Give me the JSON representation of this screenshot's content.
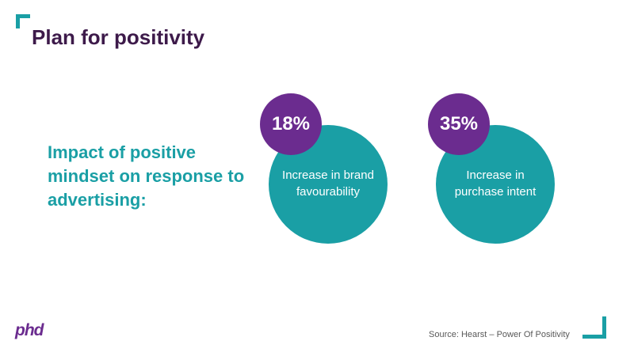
{
  "slide": {
    "title": "Plan for positivity",
    "subtitle": "Impact of positive mindset on response to advertising:",
    "stats": [
      {
        "value": "18%",
        "label": "Increase in brand favourability"
      },
      {
        "value": "35%",
        "label": "Increase in purchase intent"
      }
    ],
    "source": "Source: Hearst – Power Of Positivity",
    "logo": "phd"
  },
  "colors": {
    "accent_teal": "#1a9fa5",
    "accent_purple": "#6b2c8f",
    "title_dark_purple": "#3d1a4a"
  }
}
